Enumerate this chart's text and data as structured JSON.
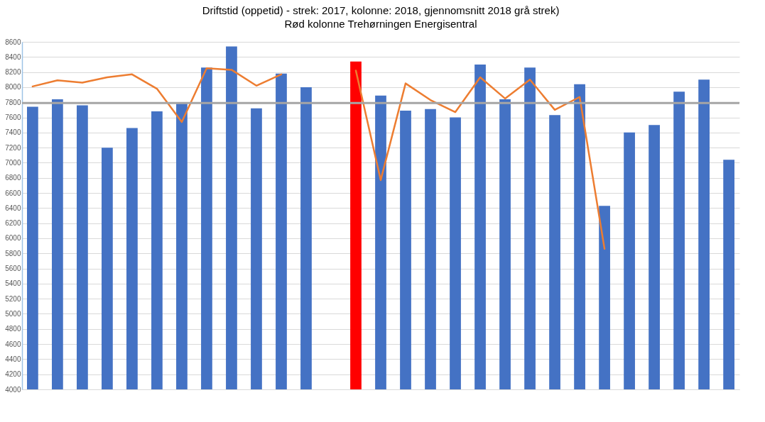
{
  "chart_data": {
    "type": "bar",
    "title": "Driftstid (oppetid) - strek: 2017, kolonne: 2018, gjennomsnitt 2018 grå strek)",
    "subtitle": "Rød kolonne Trehørningen Energisentral",
    "categories": [
      null,
      null,
      null,
      null,
      null,
      null,
      null,
      null,
      null,
      null,
      null,
      null,
      null,
      null,
      null,
      null,
      null,
      null,
      null,
      null,
      null,
      null,
      null,
      null,
      null,
      null,
      null,
      null,
      null
    ],
    "series": [
      {
        "colors": [
          "#4472c4",
          "#4472c4",
          "#4472c4",
          "#4472c4",
          "#4472c4",
          "#4472c4",
          "#4472c4",
          "#4472c4",
          "#4472c4",
          "#4472c4",
          "#4472c4",
          "#4472c4",
          "#4472c4",
          "#ff0000",
          "#4472c4",
          "#4472c4",
          "#4472c4",
          "#4472c4",
          "#4472c4",
          "#4472c4",
          "#4472c4",
          "#4472c4",
          "#4472c4",
          "#4472c4",
          "#4472c4",
          "#4472c4",
          "#4472c4",
          "#4472c4",
          "#4472c4"
        ],
        "values": [
          7740,
          7840,
          7760,
          7200,
          7460,
          7680,
          7780,
          8260,
          8540,
          7720,
          8180,
          8000,
          null,
          8340,
          7890,
          7690,
          7710,
          7600,
          8300,
          7840,
          8260,
          7630,
          8040,
          6430,
          7400,
          7500,
          7940,
          8100,
          7040
        ]
      },
      {
        "type": "line",
        "color": "#ed7d31",
        "values": [
          8010,
          8090,
          8060,
          8130,
          8170,
          7980,
          7540,
          8250,
          8230,
          8020,
          8170,
          null,
          null,
          8220,
          6770,
          8050,
          7830,
          7670,
          8130,
          7850,
          8100,
          7700,
          7870,
          5860,
          null,
          null,
          null,
          null,
          null
        ]
      }
    ],
    "ref_lines": [
      {
        "axis": "y",
        "value": 7790,
        "color": "#a5a5a5"
      }
    ],
    "ylim": [
      4000,
      8600
    ],
    "yticks": [
      4000,
      4200,
      4400,
      4600,
      4800,
      5000,
      5200,
      5400,
      5600,
      5800,
      6000,
      6200,
      6400,
      6600,
      6800,
      7000,
      7200,
      7400,
      7600,
      7800,
      8000,
      8200,
      8400,
      8600
    ],
    "grid": "y"
  }
}
